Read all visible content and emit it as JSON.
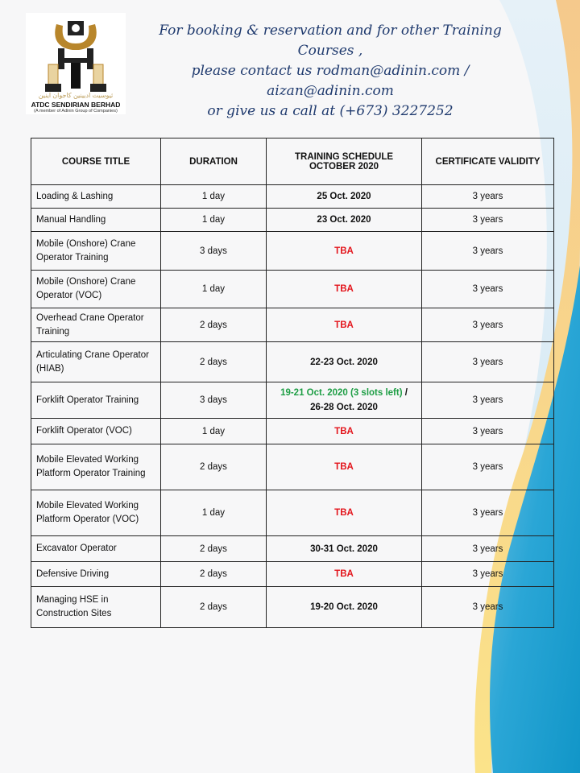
{
  "logo": {
    "arabic_text": "ثيوسيت اديينين كاجوان اينين",
    "company": "ATDC SENDIRIAN BERHAD",
    "tagline": "(A member of Adinin Group of Companies)"
  },
  "contact": {
    "line1": "For booking & reservation and for other Training Courses ,",
    "line2": "please contact us rodman@adinin.com / aizan@adinin.com",
    "line3": "or give us a call at (+673) 3227252"
  },
  "colors": {
    "tba": "#e3141b",
    "available": "#1e9e45",
    "accent_blue": "#1aa3d4",
    "accent_yellow": "#f6d77a"
  },
  "table": {
    "headers": [
      "COURSE TITLE",
      "DURATION",
      "TRAINING SCHEDULE\nOCTOBER 2020",
      "CERTIFICATE VALIDITY"
    ],
    "header_schedule_line1": "TRAINING SCHEDULE",
    "header_schedule_line2": "OCTOBER 2020",
    "rows": [
      {
        "title": "Loading & Lashing",
        "duration": "1 day",
        "schedule": [
          {
            "text": "25 Oct. 2020",
            "style": "black"
          }
        ],
        "validity": "3 years"
      },
      {
        "title": "Manual Handling",
        "duration": "1 day",
        "schedule": [
          {
            "text": "23 Oct. 2020",
            "style": "black"
          }
        ],
        "validity": "3 years"
      },
      {
        "title": "Mobile (Onshore) Crane Operator Training",
        "duration": "3 days",
        "schedule": [
          {
            "text": "TBA",
            "style": "red"
          }
        ],
        "validity": "3 years"
      },
      {
        "title": "Mobile (Onshore) Crane Operator (VOC)",
        "duration": "1 day",
        "schedule": [
          {
            "text": "TBA",
            "style": "red"
          }
        ],
        "validity": "3 years"
      },
      {
        "title": "Overhead Crane Operator Training",
        "duration": "2 days",
        "schedule": [
          {
            "text": "TBA",
            "style": "red"
          }
        ],
        "validity": "3 years"
      },
      {
        "title": "Articulating  Crane Operator (HIAB)",
        "duration": "2 days",
        "schedule": [
          {
            "text": "22-23 Oct. 2020",
            "style": "black"
          }
        ],
        "validity": "3 years"
      },
      {
        "title": "Forklift  Operator Training",
        "duration": "3 days",
        "schedule": [
          {
            "text": "19-21 Oct. 2020 (3 slots left)",
            "style": "green"
          },
          {
            "text": " / ",
            "style": "black"
          },
          {
            "text": "26-28 Oct. 2020",
            "style": "black",
            "newline": true
          }
        ],
        "validity": "3 years"
      },
      {
        "title": "Forklift  Operator (VOC)",
        "duration": "1 day",
        "schedule": [
          {
            "text": "TBA",
            "style": "red"
          }
        ],
        "validity": "3 years"
      },
      {
        "title": "Mobile Elevated Working Platform  Operator Training",
        "duration": "2 days",
        "schedule": [
          {
            "text": "TBA",
            "style": "red"
          }
        ],
        "validity": "3 years"
      },
      {
        "title": "Mobile Elevated Working Platform  Operator (VOC)",
        "duration": "1 day",
        "schedule": [
          {
            "text": "TBA",
            "style": "red"
          }
        ],
        "validity": "3 years"
      },
      {
        "title": "Excavator Operator",
        "duration": "2 days",
        "schedule": [
          {
            "text": "30-31 Oct. 2020",
            "style": "black"
          }
        ],
        "validity": "3 years"
      },
      {
        "title": "Defensive Driving",
        "duration": "2 days",
        "schedule": [
          {
            "text": "TBA",
            "style": "red"
          }
        ],
        "validity": "3 years"
      },
      {
        "title": "Managing HSE in Construction  Sites",
        "duration": "2 days",
        "schedule": [
          {
            "text": "19-20 Oct. 2020",
            "style": "black"
          }
        ],
        "validity": "3 years"
      }
    ]
  }
}
